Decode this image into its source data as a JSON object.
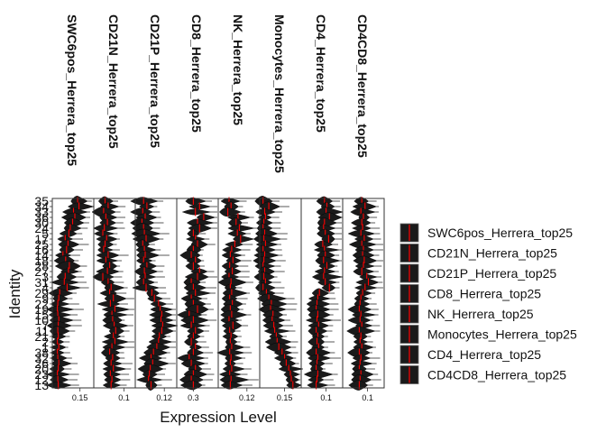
{
  "chart_data": {
    "type": "violin",
    "xlabel": "Expression Level",
    "ylabel": "Identity",
    "identities": [
      "35",
      "34",
      "33",
      "36",
      "30",
      "24",
      "5",
      "17",
      "25",
      "16",
      "14",
      "18",
      "28",
      "27",
      "3",
      "31",
      "4",
      "29",
      "9",
      "22",
      "19",
      "15",
      "10",
      "7",
      "11",
      "21",
      "2",
      "1",
      "38",
      "32",
      "26",
      "20",
      "23",
      "12",
      "13"
    ],
    "facets": [
      {
        "name": "SWC6pos_Herrera_top25",
        "xlim": [
          0.09,
          0.18
        ],
        "tick_labels": [
          "0.15"
        ],
        "tick_values": [
          0.15
        ],
        "medians": [
          0.145,
          0.148,
          0.136,
          0.139,
          0.134,
          0.129,
          0.126,
          0.118,
          0.124,
          0.121,
          0.113,
          0.119,
          0.127,
          0.125,
          0.118,
          0.116,
          0.122,
          0.106,
          0.104,
          0.102,
          0.101,
          0.102,
          0.104,
          0.103,
          0.102,
          0.103,
          0.101,
          0.104,
          0.101,
          0.102,
          0.104,
          0.103,
          0.101,
          0.102,
          0.103
        ]
      },
      {
        "name": "CD21N_Herrera_top25",
        "xlim": [
          0.06,
          0.115
        ],
        "tick_labels": [
          "0.1"
        ],
        "tick_values": [
          0.1
        ],
        "medians": [
          0.075,
          0.079,
          0.073,
          0.076,
          0.078,
          0.074,
          0.072,
          0.077,
          0.075,
          0.073,
          0.079,
          0.076,
          0.081,
          0.078,
          0.072,
          0.079,
          0.083,
          0.081,
          0.086,
          0.082,
          0.088,
          0.084,
          0.085,
          0.087,
          0.089,
          0.086,
          0.088,
          0.084,
          0.081,
          0.085,
          0.083,
          0.086,
          0.082,
          0.084,
          0.083
        ]
      },
      {
        "name": "CD21P_Herrera_top25",
        "xlim": [
          0.085,
          0.135
        ],
        "tick_labels": [
          "0.12"
        ],
        "tick_values": [
          0.12
        ],
        "medians": [
          0.095,
          0.099,
          0.094,
          0.097,
          0.093,
          0.095,
          0.096,
          0.098,
          0.094,
          0.096,
          0.097,
          0.095,
          0.099,
          0.096,
          0.097,
          0.095,
          0.098,
          0.105,
          0.108,
          0.113,
          0.115,
          0.117,
          0.116,
          0.118,
          0.117,
          0.114,
          0.113,
          0.111,
          0.107,
          0.104,
          0.106,
          0.103,
          0.102,
          0.101,
          0.104
        ]
      },
      {
        "name": "CD8_Herrera_top25",
        "xlim": [
          0.22,
          0.42
        ],
        "tick_labels": [
          "0.3"
        ],
        "tick_values": [
          0.3
        ],
        "medians": [
          0.3,
          0.33,
          0.31,
          0.35,
          0.32,
          0.33,
          0.3,
          0.31,
          0.32,
          0.3,
          0.29,
          0.31,
          0.3,
          0.33,
          0.32,
          0.29,
          0.3,
          0.31,
          0.29,
          0.3,
          0.32,
          0.28,
          0.3,
          0.29,
          0.31,
          0.3,
          0.29,
          0.31,
          0.3,
          0.28,
          0.29,
          0.31,
          0.3,
          0.29,
          0.3
        ]
      },
      {
        "name": "NK_Herrera_top25",
        "xlim": [
          0.075,
          0.14
        ],
        "tick_labels": [
          "0.12"
        ],
        "tick_values": [
          0.12
        ],
        "medians": [
          0.092,
          0.095,
          0.09,
          0.106,
          0.103,
          0.108,
          0.105,
          0.11,
          0.101,
          0.096,
          0.094,
          0.098,
          0.093,
          0.097,
          0.092,
          0.095,
          0.094,
          0.096,
          0.093,
          0.097,
          0.094,
          0.096,
          0.092,
          0.098,
          0.093,
          0.095,
          0.094,
          0.096,
          0.093,
          0.095,
          0.094,
          0.096,
          0.093,
          0.095,
          0.094
        ]
      },
      {
        "name": "Monocytes_Herrera_top25",
        "xlim": [
          0.12,
          0.17
        ],
        "tick_labels": [
          "0.15"
        ],
        "tick_values": [
          0.15
        ],
        "medians": [
          0.124,
          0.131,
          0.126,
          0.127,
          0.125,
          0.124,
          0.126,
          0.125,
          0.127,
          0.124,
          0.126,
          0.125,
          0.124,
          0.126,
          0.125,
          0.127,
          0.124,
          0.128,
          0.131,
          0.134,
          0.133,
          0.136,
          0.135,
          0.137,
          0.138,
          0.14,
          0.141,
          0.143,
          0.147,
          0.15,
          0.152,
          0.155,
          0.157,
          0.158,
          0.16
        ]
      },
      {
        "name": "CD4_Herrera_top25",
        "xlim": [
          0.07,
          0.12
        ],
        "tick_labels": [
          "0.1"
        ],
        "tick_values": [
          0.1
        ],
        "medians": [
          0.098,
          0.101,
          0.1,
          0.104,
          0.098,
          0.097,
          0.099,
          0.103,
          0.096,
          0.098,
          0.099,
          0.097,
          0.101,
          0.098,
          0.097,
          0.099,
          0.104,
          0.092,
          0.09,
          0.089,
          0.088,
          0.09,
          0.089,
          0.091,
          0.088,
          0.09,
          0.089,
          0.091,
          0.088,
          0.09,
          0.089,
          0.088,
          0.09,
          0.089,
          0.088
        ]
      },
      {
        "name": "CD4CD8_Herrera_top25",
        "xlim": [
          0.07,
          0.12
        ],
        "tick_labels": [
          "0.1"
        ],
        "tick_values": [
          0.1
        ],
        "medians": [
          0.093,
          0.097,
          0.092,
          0.095,
          0.093,
          0.094,
          0.092,
          0.096,
          0.093,
          0.095,
          0.094,
          0.096,
          0.095,
          0.093,
          0.099,
          0.101,
          0.097,
          0.094,
          0.092,
          0.091,
          0.09,
          0.092,
          0.091,
          0.093,
          0.09,
          0.092,
          0.091,
          0.093,
          0.09,
          0.092,
          0.091,
          0.09,
          0.092,
          0.091,
          0.09
        ]
      }
    ],
    "legend": {
      "placement": "right",
      "entries": [
        "SWC6pos_Herrera_top25",
        "CD21N_Herrera_top25",
        "CD21P_Herrera_top25",
        "CD8_Herrera_top25",
        "NK_Herrera_top25",
        "Monocytes_Herrera_top25",
        "CD4_Herrera_top25",
        "CD4CD8_Herrera_top25"
      ]
    },
    "colors": {
      "violin_fill": "#1a1a1a",
      "median_line": "#ff0000",
      "panel_border": "#333333"
    },
    "grid": false
  }
}
